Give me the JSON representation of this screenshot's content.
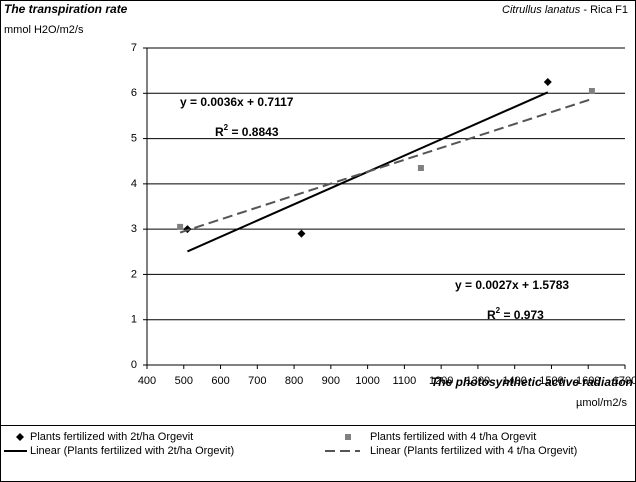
{
  "chart_data": {
    "type": "scatter",
    "title": "The transpiration rate",
    "y_unit": "mmol H2O/m2/s",
    "species": "Citrullus lanatus",
    "variety": " - Rica F1",
    "x_label": "The photosynthetic active radiation",
    "x_unit": "µmol/m2/s",
    "xlim": [
      400,
      1700
    ],
    "xticks": [
      400,
      500,
      600,
      700,
      800,
      900,
      1000,
      1100,
      1200,
      1300,
      1400,
      1500,
      1600,
      1700
    ],
    "ylim": [
      0,
      7
    ],
    "yticks": [
      0,
      1,
      2,
      3,
      4,
      5,
      6,
      7
    ],
    "grid": true,
    "legend": "bottom",
    "series": [
      {
        "name": "Plants fertilized with 2t/ha Orgevit",
        "marker": "diamond",
        "color": "#000000",
        "x": [
          510,
          820,
          1490
        ],
        "values": [
          3.0,
          2.9,
          6.25
        ],
        "trendline": {
          "name": "Linear (Plants fertilized with 2t/ha Orgevit)",
          "dash": false,
          "equation": "y = 0.0036x + 0.7117",
          "r2_symbol": "R",
          "r2_exponent": "2",
          "r2_value": " = 0.8843"
        }
      },
      {
        "name": "Plants fertilized with 4 t/ha Orgevit",
        "marker": "square",
        "color": "#808080",
        "x": [
          490,
          1145,
          1610
        ],
        "values": [
          3.05,
          4.35,
          6.05
        ],
        "trendline": {
          "name": "Linear (Plants fertilized with 4 t/ha Orgevit)",
          "dash": true,
          "equation": "y = 0.0027x + 1.5783",
          "r2_symbol": "R",
          "r2_exponent": "2",
          "r2_value": " = 0.973"
        }
      }
    ]
  }
}
